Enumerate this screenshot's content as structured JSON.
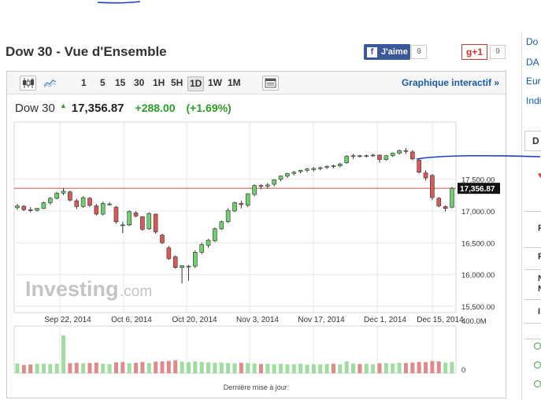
{
  "header": {
    "title": "Dow 30 - Vue d'Ensemble",
    "facebook_label": "J'aime",
    "facebook_count": "9",
    "gplus_label": "g+1",
    "gplus_count": "9"
  },
  "sidebar_fragments": {
    "links": [
      "Do",
      "DA",
      "Eur",
      "Indi"
    ],
    "tab_letter": "D",
    "row_letters": [
      "F",
      "F",
      "N",
      "N",
      "I"
    ]
  },
  "toolbar": {
    "periods": [
      "1",
      "5",
      "15",
      "30",
      "1H",
      "5H",
      "1D",
      "1W",
      "1M"
    ],
    "active_period": "1D",
    "interactive_link": "Graphique interactif »"
  },
  "quote": {
    "name": "Dow 30",
    "last": "17,356.87",
    "change": "+288.00",
    "change_pct": "(+1.69%)"
  },
  "colors": {
    "up": "#6fcf6f",
    "down": "#d8595a",
    "price_line": "#c0504d",
    "link": "#1a5aa6",
    "annotation_ink": "#1a3fc4"
  },
  "footer": {
    "updated_label": "Dernière mise à jour:"
  },
  "chart_data": {
    "type": "candlestick",
    "watermark": "Investing.com",
    "x_tick_labels": [
      "Sep 22, 2014",
      "Oct 6, 2014",
      "Oct 20, 2014",
      "Nov 3, 2014",
      "Nov 17, 2014",
      "Dec 1, 2014",
      "Dec 15, 2014"
    ],
    "y_tick_labels": [
      "17,500.00",
      "17,000.00",
      "16,500.00",
      "16,000.00",
      "15,500.00"
    ],
    "y_ticks": [
      17500,
      17000,
      16500,
      16000,
      15500
    ],
    "ylim": [
      15400,
      18400
    ],
    "current_price": 17356.87,
    "current_price_label": "17,356.87",
    "volume_tick_labels": [
      "400.0M",
      "0"
    ],
    "volume_ylim": [
      0,
      400
    ],
    "candles": [
      [
        17050,
        17110,
        17020,
        17080
      ],
      [
        17075,
        17090,
        17000,
        17020
      ],
      [
        17020,
        17060,
        16980,
        17010
      ],
      [
        17010,
        17050,
        16990,
        17040
      ],
      [
        17040,
        17150,
        17030,
        17130
      ],
      [
        17130,
        17220,
        17100,
        17200
      ],
      [
        17200,
        17300,
        17180,
        17280
      ],
      [
        17280,
        17360,
        17250,
        17310
      ],
      [
        17300,
        17320,
        17150,
        17170
      ],
      [
        17160,
        17190,
        17030,
        17070
      ],
      [
        17070,
        17230,
        17050,
        17210
      ],
      [
        17200,
        17220,
        17060,
        17090
      ],
      [
        17080,
        17110,
        16930,
        16950
      ],
      [
        16950,
        17150,
        16930,
        17120
      ],
      [
        17110,
        17140,
        17080,
        17110
      ],
      [
        17060,
        17080,
        16800,
        16830
      ],
      [
        16770,
        16830,
        16650,
        16780
      ],
      [
        16780,
        17010,
        16760,
        16990
      ],
      [
        16970,
        17000,
        16900,
        16920
      ],
      [
        16910,
        16920,
        16690,
        16710
      ],
      [
        16720,
        16980,
        16700,
        16960
      ],
      [
        16950,
        16960,
        16640,
        16670
      ],
      [
        16620,
        16640,
        16480,
        16500
      ],
      [
        16420,
        16450,
        16230,
        16250
      ],
      [
        16280,
        16300,
        16090,
        16110
      ],
      [
        16110,
        16130,
        15860,
        16140
      ],
      [
        16130,
        16150,
        15900,
        16130
      ],
      [
        16130,
        16380,
        16100,
        16350
      ],
      [
        16350,
        16500,
        16320,
        16470
      ],
      [
        16460,
        16560,
        16420,
        16540
      ],
      [
        16530,
        16740,
        16510,
        16720
      ],
      [
        16720,
        16850,
        16700,
        16830
      ],
      [
        16830,
        17040,
        16810,
        17010
      ],
      [
        17000,
        17150,
        16980,
        17130
      ],
      [
        17120,
        17160,
        17040,
        17100
      ],
      [
        17090,
        17280,
        17060,
        17270
      ],
      [
        17260,
        17420,
        17230,
        17400
      ],
      [
        17400,
        17420,
        17340,
        17390
      ],
      [
        17390,
        17440,
        17350,
        17410
      ],
      [
        17420,
        17500,
        17390,
        17490
      ],
      [
        17500,
        17560,
        17470,
        17550
      ],
      [
        17550,
        17600,
        17520,
        17590
      ],
      [
        17590,
        17630,
        17560,
        17610
      ],
      [
        17620,
        17650,
        17590,
        17640
      ],
      [
        17640,
        17680,
        17610,
        17660
      ],
      [
        17650,
        17690,
        17620,
        17670
      ],
      [
        17670,
        17700,
        17640,
        17680
      ],
      [
        17690,
        17720,
        17660,
        17700
      ],
      [
        17700,
        17730,
        17670,
        17710
      ],
      [
        17710,
        17760,
        17690,
        17740
      ],
      [
        17760,
        17880,
        17740,
        17860
      ],
      [
        17860,
        17900,
        17820,
        17870
      ],
      [
        17870,
        17880,
        17840,
        17860
      ],
      [
        17860,
        17890,
        17840,
        17870
      ],
      [
        17870,
        17900,
        17850,
        17880
      ],
      [
        17880,
        17890,
        17760,
        17810
      ],
      [
        17810,
        17880,
        17790,
        17870
      ],
      [
        17870,
        17920,
        17850,
        17910
      ],
      [
        17910,
        17970,
        17890,
        17950
      ],
      [
        17950,
        17990,
        17900,
        17940
      ],
      [
        17930,
        17960,
        17800,
        17820
      ],
      [
        17800,
        17830,
        17590,
        17610
      ],
      [
        17600,
        17640,
        17480,
        17520
      ],
      [
        17560,
        17580,
        17170,
        17210
      ],
      [
        17200,
        17220,
        17060,
        17080
      ],
      [
        17070,
        17090,
        16990,
        17040
      ],
      [
        17060,
        17380,
        17040,
        17357
      ]
    ],
    "volumes": [
      [
        82,
        1
      ],
      [
        70,
        0
      ],
      [
        74,
        0
      ],
      [
        80,
        1
      ],
      [
        82,
        1
      ],
      [
        78,
        1
      ],
      [
        80,
        1
      ],
      [
        320,
        1
      ],
      [
        85,
        0
      ],
      [
        88,
        0
      ],
      [
        84,
        1
      ],
      [
        86,
        0
      ],
      [
        90,
        0
      ],
      [
        80,
        1
      ],
      [
        78,
        1
      ],
      [
        92,
        0
      ],
      [
        95,
        0
      ],
      [
        85,
        1
      ],
      [
        88,
        0
      ],
      [
        96,
        0
      ],
      [
        86,
        1
      ],
      [
        98,
        0
      ],
      [
        100,
        0
      ],
      [
        104,
        0
      ],
      [
        110,
        0
      ],
      [
        98,
        1
      ],
      [
        94,
        1
      ],
      [
        100,
        1
      ],
      [
        96,
        1
      ],
      [
        92,
        1
      ],
      [
        88,
        1
      ],
      [
        90,
        1
      ],
      [
        86,
        1
      ],
      [
        84,
        1
      ],
      [
        88,
        0
      ],
      [
        86,
        1
      ],
      [
        82,
        1
      ],
      [
        78,
        0
      ],
      [
        80,
        1
      ],
      [
        76,
        1
      ],
      [
        80,
        1
      ],
      [
        74,
        1
      ],
      [
        76,
        1
      ],
      [
        80,
        1
      ],
      [
        72,
        1
      ],
      [
        76,
        1
      ],
      [
        74,
        1
      ],
      [
        78,
        1
      ],
      [
        80,
        0
      ],
      [
        76,
        1
      ],
      [
        100,
        1
      ],
      [
        82,
        1
      ],
      [
        78,
        0
      ],
      [
        80,
        1
      ],
      [
        76,
        1
      ],
      [
        84,
        0
      ],
      [
        86,
        1
      ],
      [
        82,
        1
      ],
      [
        88,
        1
      ],
      [
        86,
        0
      ],
      [
        90,
        0
      ],
      [
        96,
        0
      ],
      [
        94,
        0
      ],
      [
        104,
        0
      ],
      [
        100,
        0
      ],
      [
        90,
        1
      ],
      [
        96,
        1
      ]
    ]
  }
}
